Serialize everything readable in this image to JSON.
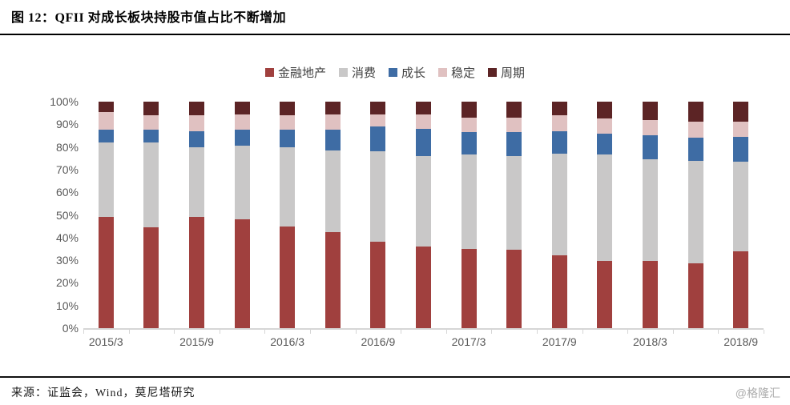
{
  "page": {
    "title": "图 12：QFII 对成长板块持股市值占比不断增加",
    "source_note": "来源：证监会，Wind，莫尼塔研究",
    "watermark": "@格隆汇"
  },
  "chart_data": {
    "type": "bar",
    "stacked": true,
    "title": "图 12：QFII 对成长板块持股市值占比不断增加",
    "xlabel": "",
    "ylabel": "",
    "ylim": [
      0,
      100
    ],
    "grid": false,
    "legend_position": "top",
    "categories": [
      "2015/3",
      "2015/6",
      "2015/9",
      "2015/12",
      "2016/3",
      "2016/6",
      "2016/9",
      "2016/12",
      "2017/3",
      "2017/6",
      "2017/9",
      "2017/12",
      "2018/3",
      "2018/6",
      "2018/9"
    ],
    "x_axis_labels_visible": [
      "2015/3",
      "2015/9",
      "2016/3",
      "2016/9",
      "2017/3",
      "2017/9",
      "2018/3",
      "2018/9"
    ],
    "y_ticks": [
      {
        "label": "100%",
        "value": 100
      },
      {
        "label": "90%",
        "value": 90
      },
      {
        "label": "80%",
        "value": 80
      },
      {
        "label": "70%",
        "value": 70
      },
      {
        "label": "60%",
        "value": 60
      },
      {
        "label": "50%",
        "value": 50
      },
      {
        "label": "40%",
        "value": 40
      },
      {
        "label": "30%",
        "value": 30
      },
      {
        "label": "20%",
        "value": 20
      },
      {
        "label": "10%",
        "value": 10
      },
      {
        "label": "0%",
        "value": 0
      }
    ],
    "series": [
      {
        "name": "金融地产",
        "color": "#A0403E",
        "values": [
          49,
          44.5,
          49,
          48,
          45,
          42.5,
          38,
          36,
          35,
          34.5,
          32,
          29.5,
          29.5,
          28.5,
          34
        ]
      },
      {
        "name": "消费",
        "color": "#C9C8C8",
        "values": [
          33,
          37.5,
          31,
          32.5,
          35,
          36,
          40,
          40,
          41.5,
          41.5,
          45,
          47,
          45,
          45.5,
          39.5
        ]
      },
      {
        "name": "成长",
        "color": "#3E6CA4",
        "values": [
          5.5,
          5.5,
          7,
          7,
          7.5,
          9,
          11,
          12,
          10,
          10.5,
          10,
          9.5,
          10.5,
          10,
          11
        ]
      },
      {
        "name": "稳定",
        "color": "#E0C1C1",
        "values": [
          8,
          6.5,
          7,
          7,
          6.5,
          7,
          5.5,
          6.5,
          6.5,
          6.5,
          7,
          6.5,
          7,
          7,
          6.5
        ]
      },
      {
        "name": "周期",
        "color": "#5C2425",
        "values": [
          4.5,
          6,
          6,
          5.5,
          6,
          5.5,
          5.5,
          5.5,
          7,
          7,
          6,
          7.5,
          8,
          9,
          9
        ]
      }
    ],
    "axis_color": "#D6D6D6",
    "tick_label_color": "#595959"
  }
}
